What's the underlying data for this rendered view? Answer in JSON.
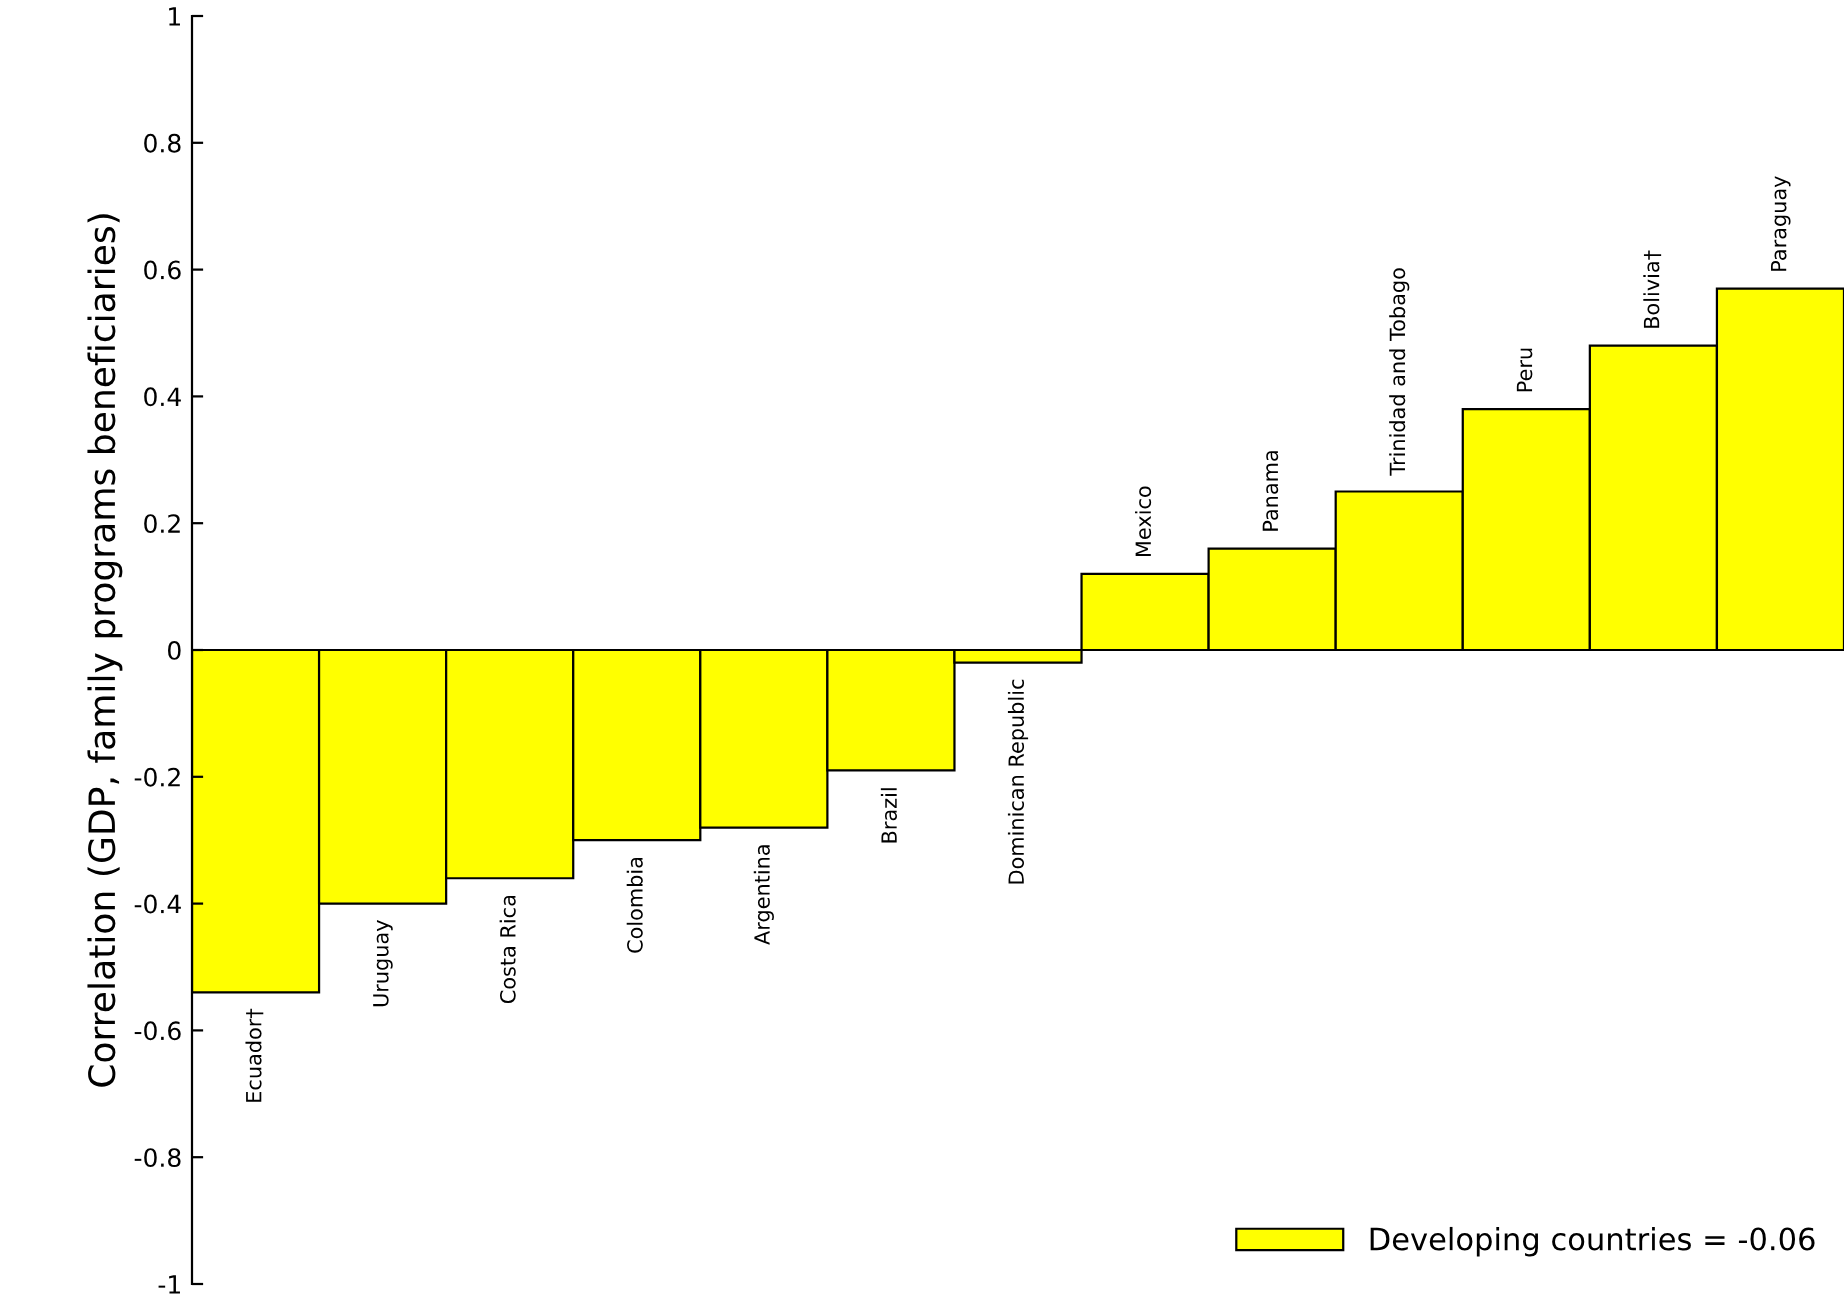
{
  "chart_data": {
    "type": "bar",
    "ylabel": "Correlation (GDP, family programs beneficiaries)",
    "categories": [
      "Ecuador†",
      "Uruguay",
      "Costa Rica",
      "Colombia",
      "Argentina",
      "Brazil",
      "Dominican Republic",
      "Mexico",
      "Panama",
      "Trinidad and Tobago",
      "Peru",
      "Bolivia†",
      "Paraguay"
    ],
    "series": [
      {
        "name": "Developing countries = -0.06",
        "color": "#ffff00",
        "values": [
          -0.54,
          -0.4,
          -0.36,
          -0.3,
          -0.28,
          -0.19,
          -0.02,
          0.12,
          0.16,
          0.25,
          0.38,
          0.48,
          0.57
        ]
      }
    ],
    "ylim": [
      -1,
      1
    ],
    "yticks": [
      -1,
      -0.8,
      -0.6,
      -0.4,
      -0.2,
      0,
      0.2,
      0.4,
      0.6,
      0.8,
      1
    ],
    "grid": false,
    "legend": "bottom right"
  }
}
